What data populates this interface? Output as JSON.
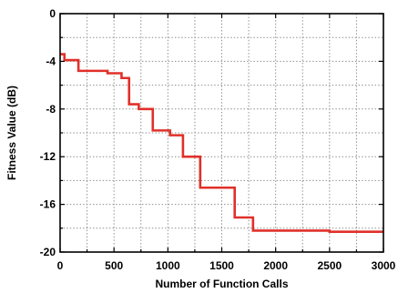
{
  "chart_data": {
    "type": "line",
    "xlabel": "Number of Function Calls",
    "ylabel": "Fitness Value (dB)",
    "xlim": [
      0,
      3000
    ],
    "ylim": [
      -20,
      0
    ],
    "x_ticks": [
      0,
      500,
      1000,
      1500,
      2000,
      2500,
      3000
    ],
    "y_ticks": [
      0,
      -4,
      -8,
      -12,
      -16,
      -20
    ],
    "x_minor_ticks": [
      250,
      750,
      1250,
      1750,
      2250,
      2750
    ],
    "y_minor_ticks": [
      -2,
      -6,
      -10,
      -14,
      -18
    ],
    "grid": true,
    "series": [
      {
        "color": "#e0302a",
        "step": true,
        "points": [
          [
            0,
            -3.4
          ],
          [
            40,
            -3.4
          ],
          [
            40,
            -3.9
          ],
          [
            170,
            -3.9
          ],
          [
            170,
            -4.8
          ],
          [
            440,
            -4.8
          ],
          [
            440,
            -5.0
          ],
          [
            570,
            -5.0
          ],
          [
            570,
            -5.4
          ],
          [
            640,
            -5.4
          ],
          [
            640,
            -7.6
          ],
          [
            730,
            -7.6
          ],
          [
            730,
            -8.0
          ],
          [
            860,
            -8.0
          ],
          [
            860,
            -9.8
          ],
          [
            1020,
            -9.8
          ],
          [
            1020,
            -10.2
          ],
          [
            1140,
            -10.2
          ],
          [
            1140,
            -12.0
          ],
          [
            1300,
            -12.0
          ],
          [
            1300,
            -14.6
          ],
          [
            1620,
            -14.6
          ],
          [
            1620,
            -17.1
          ],
          [
            1790,
            -17.1
          ],
          [
            1790,
            -18.2
          ],
          [
            2500,
            -18.2
          ],
          [
            2500,
            -18.3
          ],
          [
            3000,
            -18.3
          ]
        ]
      }
    ]
  }
}
